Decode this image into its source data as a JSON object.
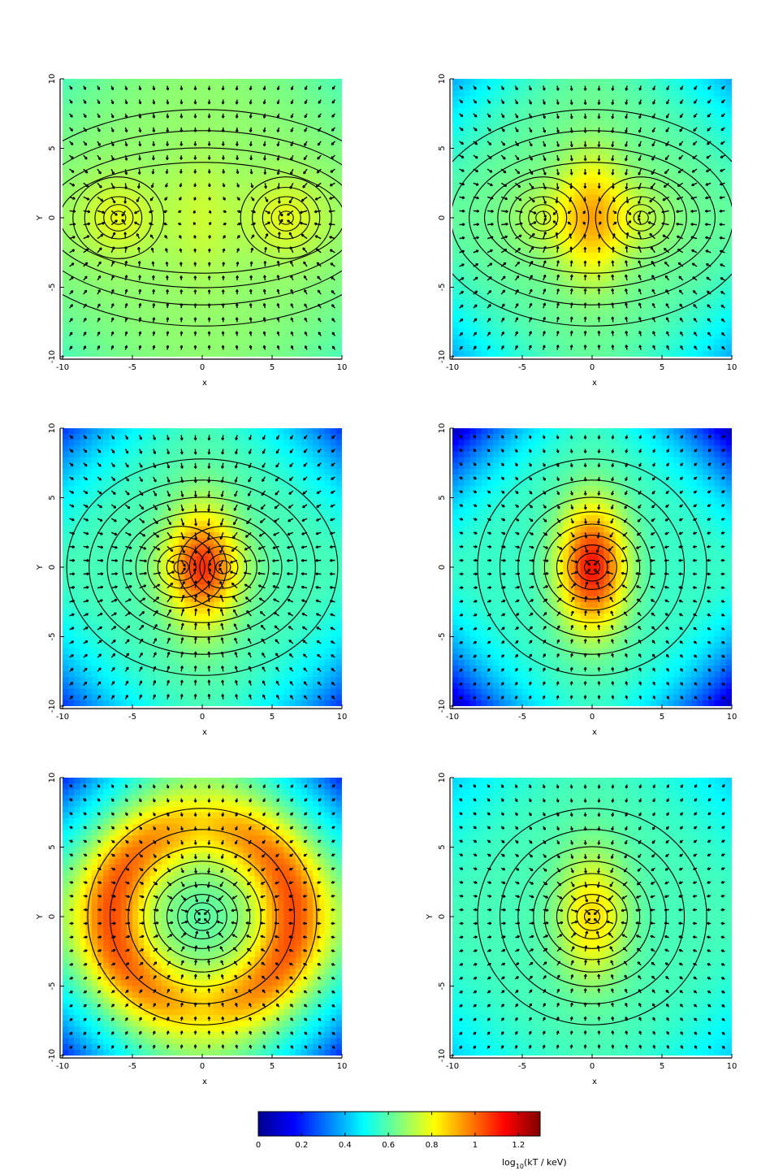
{
  "figure": {
    "colorbar": {
      "label": "log10(kT / keV)",
      "label_main": "log",
      "label_sub": "10",
      "label_tail": "(kT / keV)",
      "range": [
        0,
        1.3
      ],
      "ticks": [
        0,
        0.2,
        0.4,
        0.6,
        0.8,
        1,
        1.2
      ],
      "tick_labels": [
        "0",
        "0.2",
        "0.4",
        "0.6",
        "0.8",
        "1",
        "1.2"
      ],
      "colormap": "jet"
    }
  },
  "chart_data": [
    {
      "type": "heatmap",
      "panel": "top-left",
      "xlabel": "x",
      "ylabel": "Y",
      "xlim": [
        -10,
        10
      ],
      "ylim": [
        -10,
        10
      ],
      "xticks": [
        -10,
        -5,
        0,
        5,
        10
      ],
      "xtick_labels": [
        "-10",
        "-5",
        "0",
        "5",
        "10"
      ],
      "yticks": [
        -10,
        -5,
        0,
        5,
        10
      ],
      "ytick_labels": [
        "-10",
        "-5",
        "0",
        "5",
        "10"
      ],
      "overlays": [
        "density contours",
        "velocity arrows"
      ],
      "cores": [
        {
          "x": -6,
          "y": 0
        },
        {
          "x": 6,
          "y": 0
        }
      ],
      "field": {
        "base": 0.72,
        "center_peak": 0.08,
        "core_peak": 0.12,
        "edge_drop": 0.06
      }
    },
    {
      "type": "heatmap",
      "panel": "top-right",
      "xlabel": "x",
      "ylabel": "",
      "xlim": [
        -10,
        10
      ],
      "ylim": [
        -10,
        10
      ],
      "xticks": [
        -10,
        -5,
        0,
        5,
        10
      ],
      "xtick_labels": [
        "-10",
        "-5",
        "0",
        "5",
        "10"
      ],
      "yticks": [
        -10,
        -5,
        0,
        5,
        10
      ],
      "ytick_labels": [
        "-10",
        "-5",
        "0",
        "5",
        "10"
      ],
      "overlays": [
        "density contours",
        "velocity arrows"
      ],
      "cores": [
        {
          "x": -3.5,
          "y": 0
        },
        {
          "x": 3.5,
          "y": 0
        }
      ],
      "field": {
        "base": 0.66,
        "center_peak": 0.3,
        "core_peak": 0.1,
        "edge_drop": 0.16
      }
    },
    {
      "type": "heatmap",
      "panel": "middle-left",
      "xlabel": "x",
      "ylabel": "Y",
      "xlim": [
        -10,
        10
      ],
      "ylim": [
        -10,
        10
      ],
      "xticks": [
        -10,
        -5,
        0,
        5,
        10
      ],
      "xtick_labels": [
        "-10",
        "-5",
        "0",
        "5",
        "10"
      ],
      "yticks": [
        -10,
        -5,
        0,
        5,
        10
      ],
      "ytick_labels": [
        "-10",
        "-5",
        "0",
        "5",
        "10"
      ],
      "overlays": [
        "density contours",
        "velocity arrows"
      ],
      "cores": [
        {
          "x": -1.5,
          "y": 0
        },
        {
          "x": 1.5,
          "y": 0
        }
      ],
      "field": {
        "base": 0.62,
        "center_peak": 0.42,
        "core_peak": 0.08,
        "edge_drop": 0.24
      }
    },
    {
      "type": "heatmap",
      "panel": "middle-right",
      "xlabel": "x",
      "ylabel": "",
      "xlim": [
        -10,
        10
      ],
      "ylim": [
        -10,
        10
      ],
      "xticks": [
        -10,
        -5,
        0,
        5,
        10
      ],
      "xtick_labels": [
        "-10",
        "-5",
        "0",
        "5",
        "10"
      ],
      "yticks": [
        -10,
        -5,
        0,
        5,
        10
      ],
      "ytick_labels": [
        "-10",
        "-5",
        "0",
        "5",
        "10"
      ],
      "overlays": [
        "density contours",
        "velocity arrows"
      ],
      "cores": [
        {
          "x": 0,
          "y": 0
        }
      ],
      "field": {
        "base": 0.6,
        "center_peak": 0.6,
        "core_peak": 0.0,
        "edge_drop": 0.34
      }
    },
    {
      "type": "heatmap",
      "panel": "bottom-left",
      "xlabel": "x",
      "ylabel": "Y",
      "xlim": [
        -10,
        10
      ],
      "ylim": [
        -10,
        10
      ],
      "xticks": [
        -10,
        -5,
        0,
        5,
        10
      ],
      "xtick_labels": [
        "-10",
        "-5",
        "0",
        "5",
        "10"
      ],
      "yticks": [
        -10,
        -5,
        0,
        5,
        10
      ],
      "ytick_labels": [
        "-10",
        "-5",
        "0",
        "5",
        "10"
      ],
      "overlays": [
        "density contours",
        "velocity arrows"
      ],
      "cores": [
        {
          "x": 0,
          "y": 0
        }
      ],
      "field": {
        "base": 0.7,
        "ring_radius": 6.5,
        "ring_peak": 0.42,
        "edge_drop": 0.3
      }
    },
    {
      "type": "heatmap",
      "panel": "bottom-right",
      "xlabel": "x",
      "ylabel": "Y",
      "xlim": [
        -10,
        10
      ],
      "ylim": [
        -10,
        10
      ],
      "xticks": [
        -10,
        -5,
        0,
        5,
        10
      ],
      "xtick_labels": [
        "-10",
        "-5",
        "0",
        "5",
        "10"
      ],
      "yticks": [
        -10,
        -5,
        0,
        5,
        10
      ],
      "ytick_labels": [
        "-10",
        "-5",
        "0",
        "5",
        "10"
      ],
      "overlays": [
        "density contours",
        "velocity arrows"
      ],
      "cores": [
        {
          "x": 0,
          "y": 0
        }
      ],
      "field": {
        "base": 0.62,
        "center_peak": 0.3,
        "core_peak": 0.0,
        "edge_drop": 0.1
      }
    }
  ]
}
